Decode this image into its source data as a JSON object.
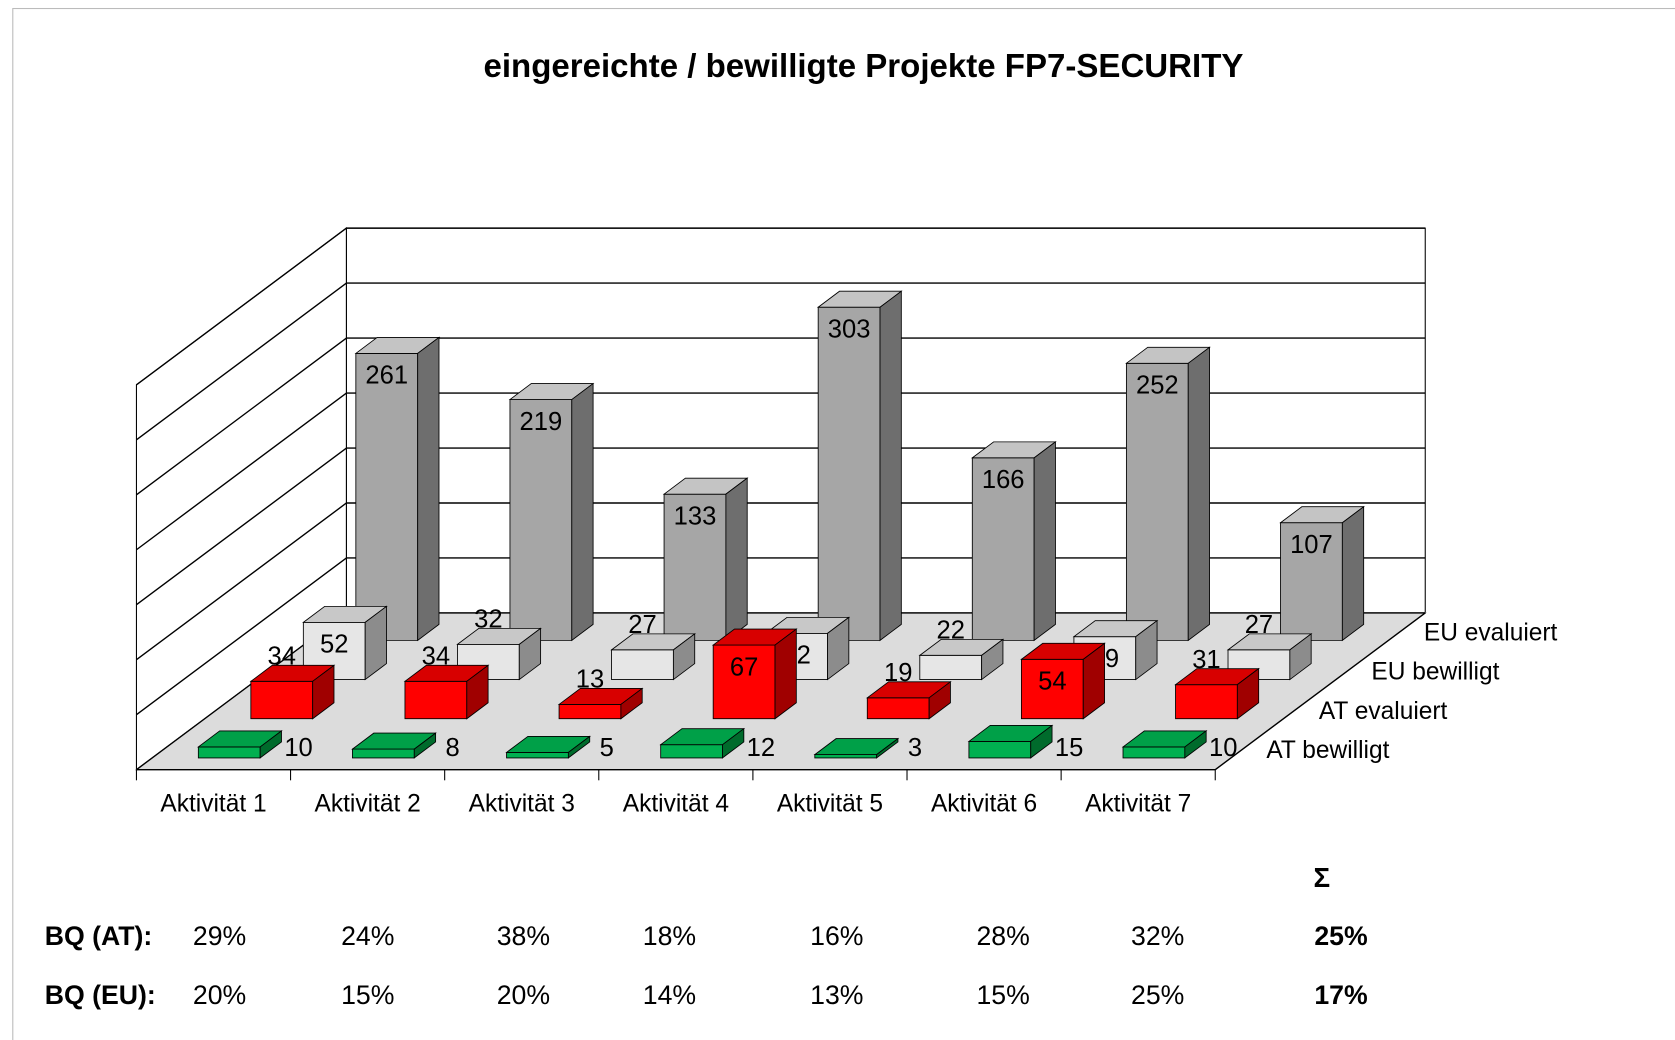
{
  "chart_data": {
    "type": "bar3d",
    "title": "eingereichte / bewilligte Projekte FP7-SECURITY",
    "categories": [
      "Aktivität 1",
      "Aktivität 2",
      "Aktivität 3",
      "Aktivität 4",
      "Aktivität 5",
      "Aktivität 6",
      "Aktivität 7"
    ],
    "series": [
      {
        "name": "AT bewilligt",
        "color": "#00b050",
        "values": [
          10,
          8,
          5,
          12,
          3,
          15,
          10
        ]
      },
      {
        "name": "AT evaluiert",
        "color": "#ff0000",
        "values": [
          34,
          34,
          13,
          67,
          19,
          54,
          31
        ]
      },
      {
        "name": "EU bewilligt",
        "color": "#e6e6e6",
        "values": [
          52,
          32,
          27,
          42,
          22,
          39,
          27
        ]
      },
      {
        "name": "EU evaluiert",
        "color": "#a6a6a6",
        "values": [
          261,
          219,
          133,
          303,
          166,
          252,
          107
        ]
      }
    ],
    "ylim": [
      0,
      350
    ],
    "yticks": [
      0,
      50,
      100,
      150,
      200,
      250,
      300,
      350
    ],
    "grid": true
  },
  "ratio_table": {
    "sum_header": "Σ",
    "rows": [
      {
        "label": "BQ (AT):",
        "values": [
          "29%",
          "24%",
          "38%",
          "18%",
          "16%",
          "28%",
          "32%"
        ],
        "total": "25%"
      },
      {
        "label": "BQ (EU):",
        "values": [
          "20%",
          "15%",
          "20%",
          "14%",
          "13%",
          "15%",
          "25%"
        ],
        "total": "17%"
      }
    ]
  }
}
